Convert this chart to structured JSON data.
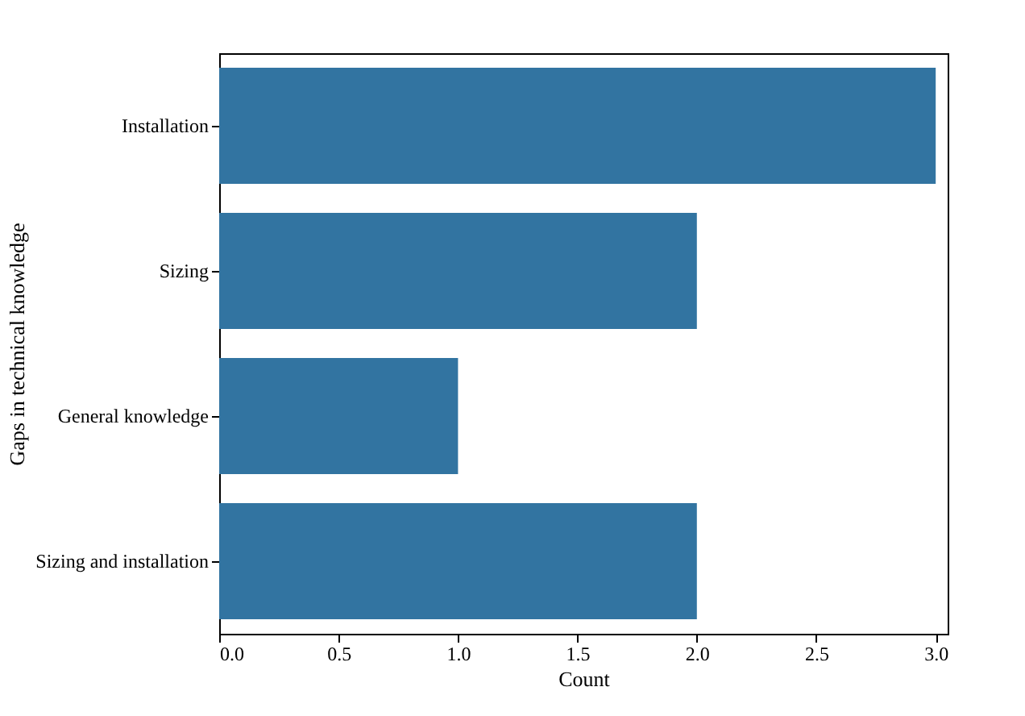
{
  "chart_data": {
    "type": "bar",
    "orientation": "horizontal",
    "xlabel": "Count",
    "ylabel": "Gaps in technical knowledge",
    "categories": [
      "Installation",
      "Sizing",
      "General knowledge",
      "Sizing and installation"
    ],
    "values": [
      3,
      2,
      1,
      2
    ],
    "color": "#3274a1",
    "xlim": [
      0,
      3.05
    ],
    "xticks": [
      {
        "value": 0,
        "label": "0.0"
      },
      0.5,
      {
        "value": 1,
        "label": "1.0"
      },
      1.5,
      {
        "value": 2,
        "label": "2.0"
      },
      2.5,
      {
        "value": 3,
        "label": "3.0"
      }
    ],
    "grid": false
  }
}
